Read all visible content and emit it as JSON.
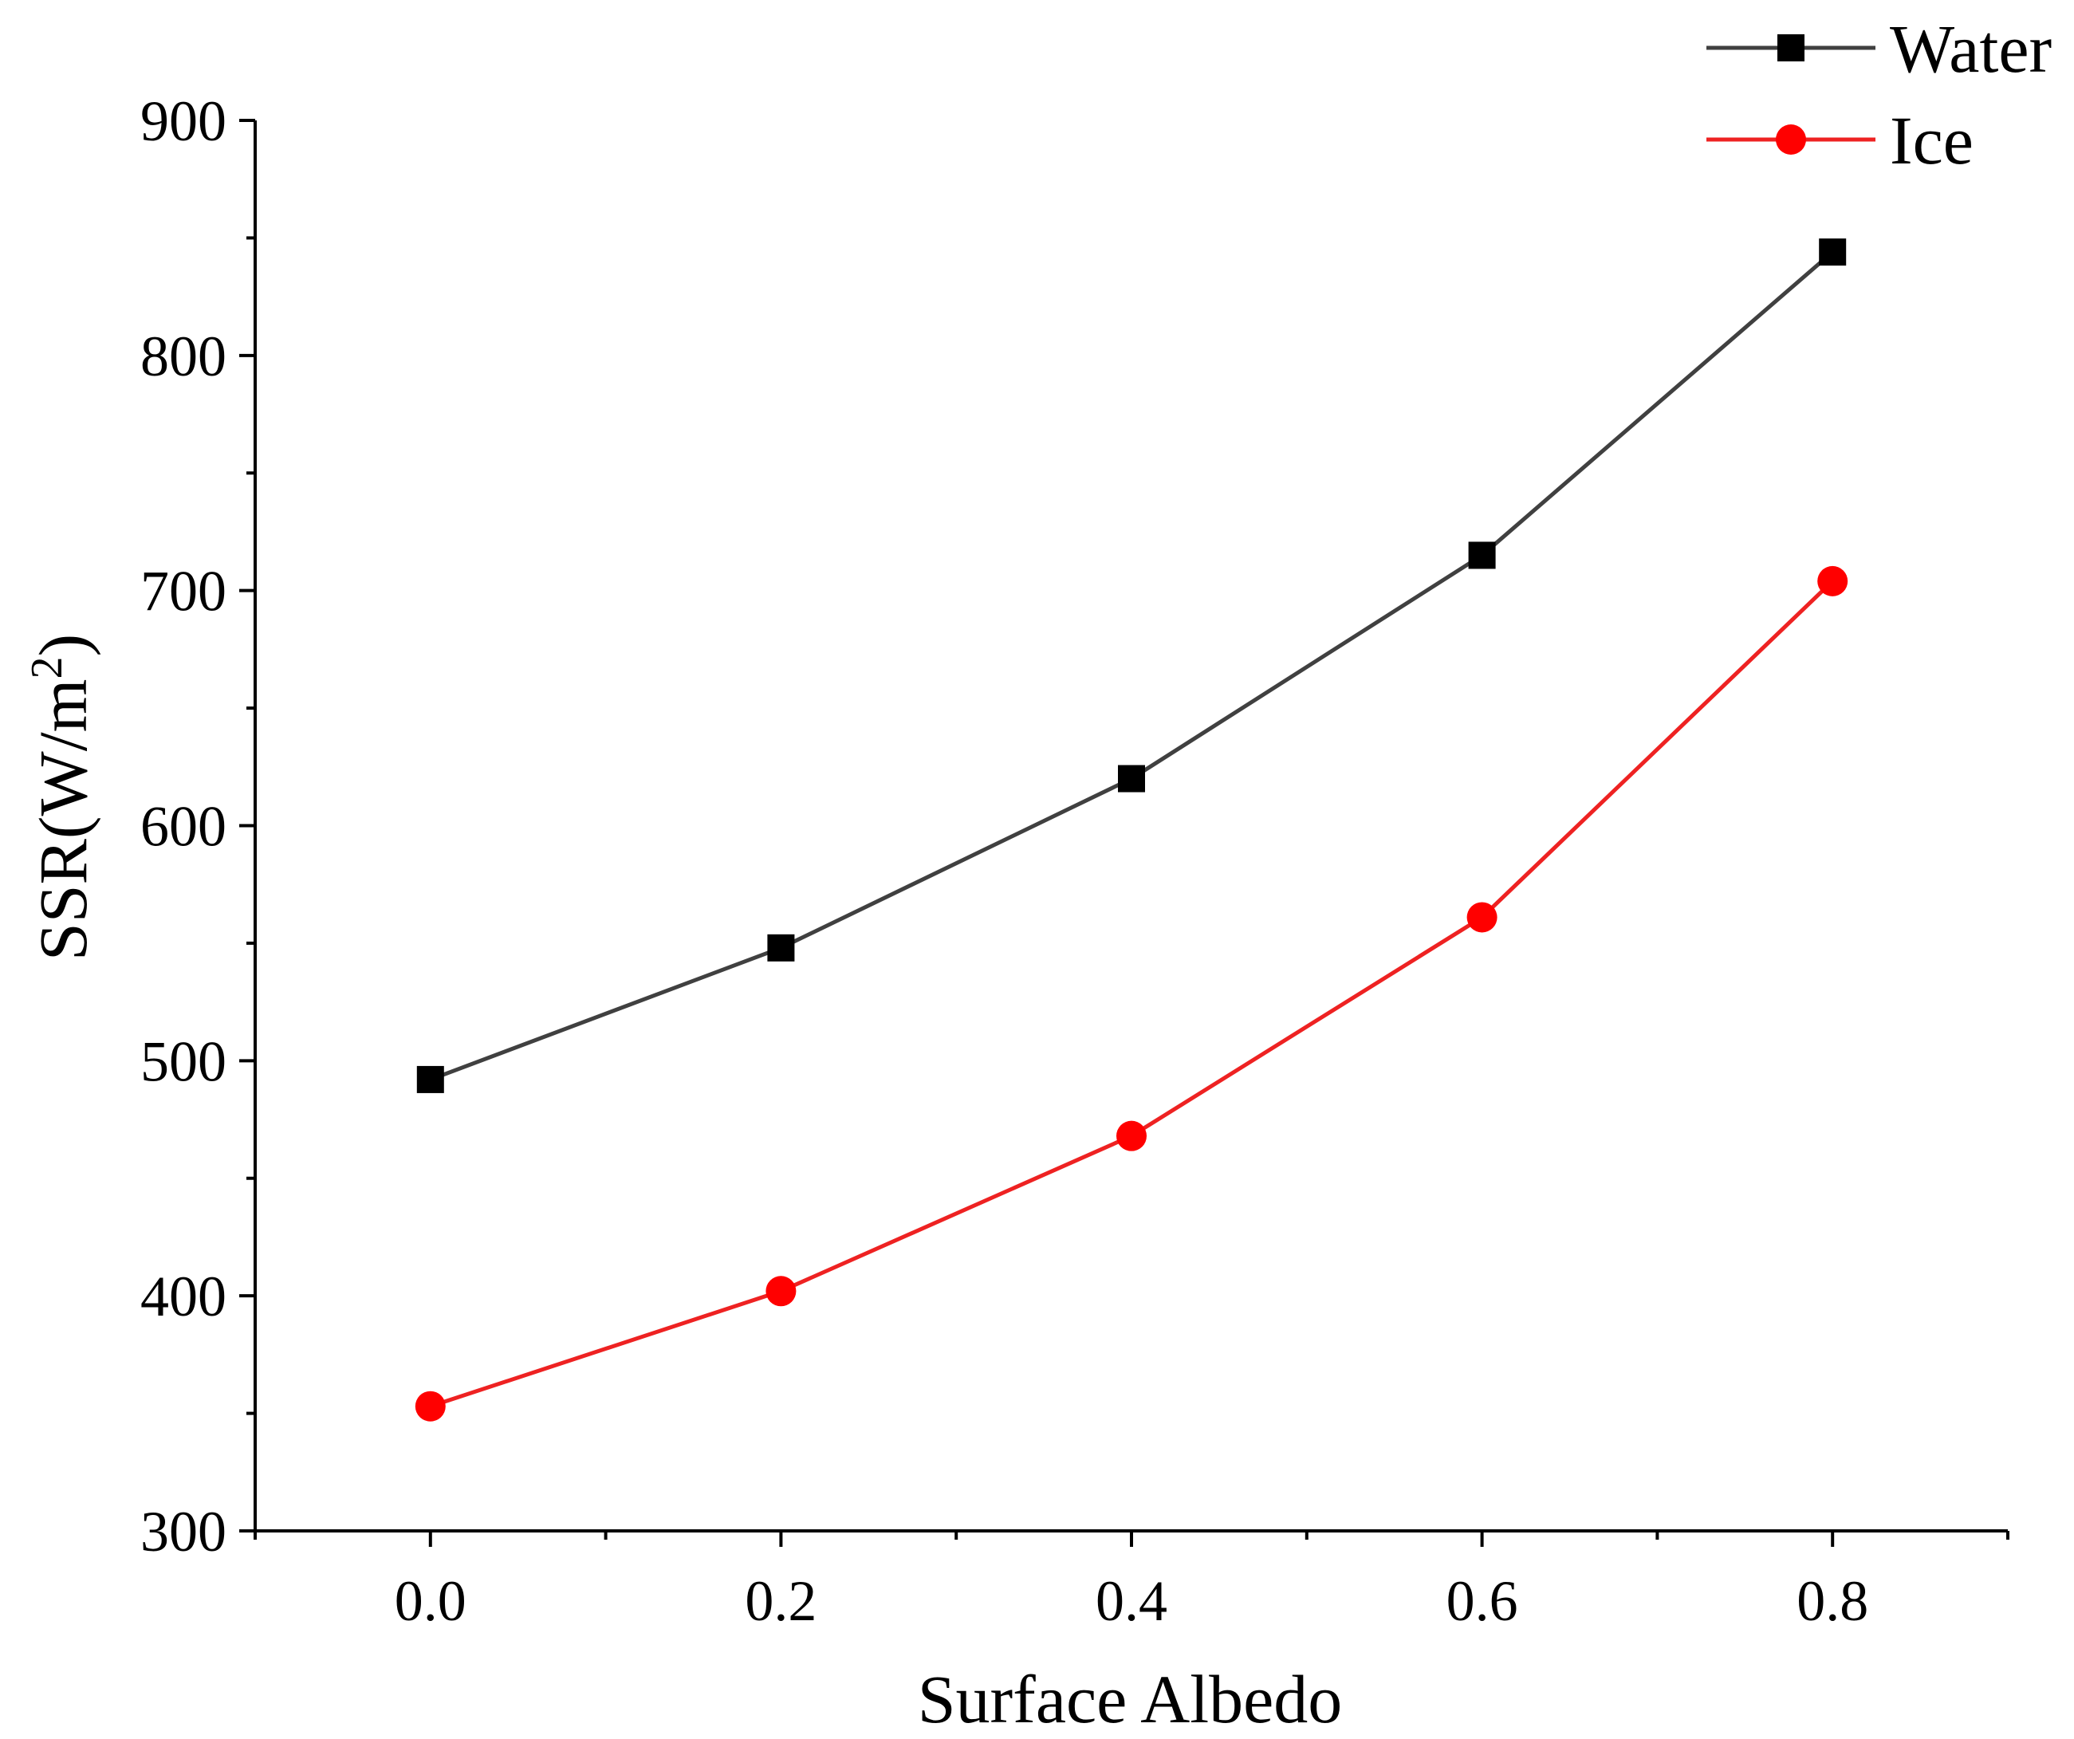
{
  "chart_data": {
    "type": "line",
    "x": [
      0.0,
      0.2,
      0.4,
      0.6,
      0.8
    ],
    "x_tick_labels": [
      "0.0",
      "0.2",
      "0.4",
      "0.6",
      "0.8"
    ],
    "y_tick_labels": [
      "300",
      "400",
      "500",
      "600",
      "700",
      "800",
      "900"
    ],
    "xlim": [
      -0.1,
      0.9
    ],
    "ylim": [
      300,
      900
    ],
    "xlabel": "Surface Albedo",
    "ylabel_main": "SSR(W/m",
    "ylabel_sup": "2",
    "ylabel_close": ")",
    "grid": false,
    "legend_position": "top-right",
    "series": [
      {
        "name": "Water",
        "marker": "square",
        "line_color": "#404040",
        "marker_color": "#000000",
        "values": [
          492,
          548,
          620,
          715,
          844
        ]
      },
      {
        "name": "Ice",
        "marker": "circle",
        "line_color": "#ee2222",
        "marker_color": "#ff0000",
        "values": [
          353,
          402,
          468,
          561,
          704
        ]
      }
    ]
  }
}
